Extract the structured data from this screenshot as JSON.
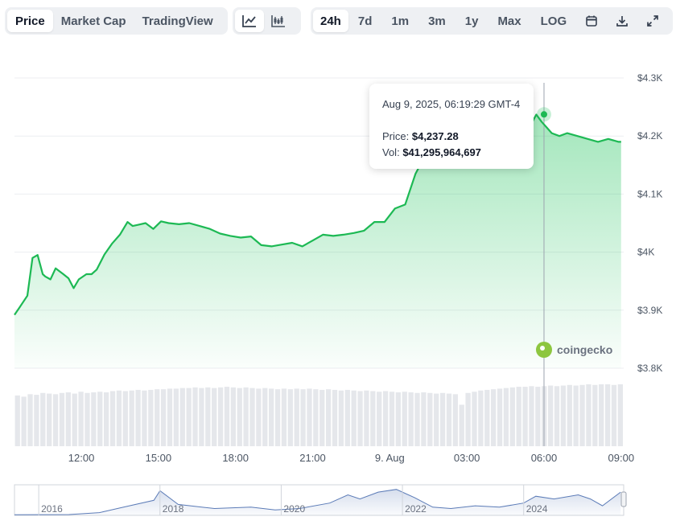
{
  "toolbar": {
    "view_tabs": [
      "Price",
      "Market Cap",
      "TradingView"
    ],
    "active_view": "Price",
    "chart_style_icons": [
      "line-chart-icon",
      "candlestick-chart-icon"
    ],
    "ranges": [
      "24h",
      "7d",
      "1m",
      "3m",
      "1y",
      "Max",
      "LOG"
    ],
    "active_range": "24h",
    "action_icons": [
      "calendar-icon",
      "download-icon",
      "expand-icon"
    ]
  },
  "tooltip": {
    "datetime": "Aug 9, 2025, 06:19:29 GMT-4",
    "price_label": "Price:",
    "price_value": "$4,237.28",
    "vol_label": "Vol:",
    "vol_value": "$41,295,964,697"
  },
  "watermark": "coingecko",
  "colors": {
    "line": "#1db954",
    "fill": "#23c45e",
    "accent_bg": "#eef0f3",
    "navigator_line": "#5b7bb7"
  },
  "chart_data": {
    "type": "area",
    "y_ticks": [
      "$4.3K",
      "$4.2K",
      "$4.1K",
      "$4K",
      "$3.9K",
      "$3.8K"
    ],
    "ylim": [
      3800,
      4300
    ],
    "x_ticks": [
      {
        "hour": 12,
        "label": "12:00"
      },
      {
        "hour": 15,
        "label": "15:00"
      },
      {
        "hour": 18,
        "label": "18:00"
      },
      {
        "hour": 21,
        "label": "21:00"
      },
      {
        "hour": 24,
        "label": "9. Aug"
      },
      {
        "hour": 27,
        "label": "03:00"
      },
      {
        "hour": 30,
        "label": "06:00"
      },
      {
        "hour": 33,
        "label": "09:00"
      }
    ],
    "xlim": [
      9.4,
      33.1
    ],
    "grid": true,
    "price_series": {
      "name": "Price",
      "x": [
        9.4,
        9.6,
        9.9,
        10.1,
        10.3,
        10.5,
        10.6,
        10.8,
        11.0,
        11.3,
        11.5,
        11.7,
        11.9,
        12.2,
        12.4,
        12.6,
        12.9,
        13.2,
        13.5,
        13.8,
        14.0,
        14.2,
        14.5,
        14.8,
        15.1,
        15.4,
        15.8,
        16.2,
        16.6,
        17.0,
        17.4,
        17.8,
        18.2,
        18.6,
        19.0,
        19.4,
        19.8,
        20.2,
        20.6,
        21.0,
        21.4,
        21.8,
        22.2,
        22.6,
        23.0,
        23.4,
        23.8,
        24.2,
        24.6,
        25.0,
        25.3,
        25.5,
        25.7,
        25.8,
        26.0,
        26.2,
        26.6,
        27.0,
        27.4,
        27.8,
        28.2,
        28.6,
        29.0,
        29.4,
        29.7,
        29.9,
        30.1,
        30.3,
        30.6,
        30.9,
        31.3,
        31.7,
        32.1,
        32.5,
        32.9,
        33.0
      ],
      "values": [
        3892,
        3905,
        3925,
        3990,
        3995,
        3962,
        3958,
        3953,
        3972,
        3962,
        3955,
        3938,
        3953,
        3962,
        3962,
        3970,
        3996,
        4015,
        4030,
        4052,
        4045,
        4047,
        4050,
        4040,
        4053,
        4050,
        4048,
        4050,
        4045,
        4040,
        4032,
        4028,
        4025,
        4027,
        4012,
        4010,
        4013,
        4016,
        4010,
        4020,
        4030,
        4028,
        4030,
        4033,
        4037,
        4052,
        4052,
        4075,
        4082,
        4135,
        4160,
        4175,
        4205,
        4195,
        4210,
        4200,
        4205,
        4195,
        4198,
        4200,
        4195,
        4205,
        4195,
        4212,
        4237,
        4225,
        4215,
        4205,
        4200,
        4205,
        4200,
        4195,
        4190,
        4195,
        4190,
        4190
      ]
    },
    "tooltip_point": {
      "x": 30.0,
      "value": 4237.28
    },
    "volume_bars": {
      "name": "Vol",
      "count": 96,
      "relative_heights": [
        0.82,
        0.8,
        0.84,
        0.83,
        0.86,
        0.85,
        0.84,
        0.86,
        0.87,
        0.85,
        0.88,
        0.86,
        0.87,
        0.88,
        0.87,
        0.89,
        0.9,
        0.89,
        0.9,
        0.91,
        0.9,
        0.91,
        0.92,
        0.92,
        0.93,
        0.93,
        0.94,
        0.94,
        0.95,
        0.94,
        0.95,
        0.94,
        0.95,
        0.96,
        0.95,
        0.94,
        0.95,
        0.94,
        0.93,
        0.94,
        0.93,
        0.92,
        0.93,
        0.92,
        0.93,
        0.92,
        0.93,
        0.92,
        0.91,
        0.92,
        0.91,
        0.9,
        0.91,
        0.9,
        0.89,
        0.9,
        0.89,
        0.88,
        0.89,
        0.88,
        0.87,
        0.88,
        0.87,
        0.86,
        0.87,
        0.86,
        0.85,
        0.86,
        0.85,
        0.84,
        0.67,
        0.86,
        0.88,
        0.9,
        0.91,
        0.92,
        0.93,
        0.94,
        0.95,
        0.96,
        0.96,
        0.97,
        0.96,
        0.97,
        0.98,
        0.97,
        0.98,
        0.99,
        0.98,
        0.99,
        1.0,
        0.99,
        1.0,
        1.0,
        0.99,
        1.0
      ]
    },
    "navigator": {
      "year_ticks": [
        {
          "year": 2016,
          "label": "2016"
        },
        {
          "year": 2018,
          "label": "2018"
        },
        {
          "year": 2020,
          "label": "2020"
        },
        {
          "year": 2022,
          "label": "2022"
        },
        {
          "year": 2024,
          "label": "2024"
        }
      ],
      "xlim": [
        2015.6,
        2025.65
      ],
      "x": [
        2015.6,
        2016.5,
        2017.0,
        2017.4,
        2017.9,
        2018.0,
        2018.3,
        2018.9,
        2019.5,
        2019.9,
        2020.3,
        2020.8,
        2021.1,
        2021.3,
        2021.6,
        2021.9,
        2022.2,
        2022.5,
        2022.8,
        2023.2,
        2023.6,
        2024.0,
        2024.2,
        2024.5,
        2024.9,
        2025.1,
        2025.3,
        2025.6
      ],
      "values": [
        0.02,
        0.03,
        0.1,
        0.3,
        0.55,
        0.9,
        0.4,
        0.25,
        0.3,
        0.2,
        0.25,
        0.45,
        0.75,
        0.6,
        0.85,
        0.95,
        0.65,
        0.3,
        0.25,
        0.35,
        0.3,
        0.45,
        0.7,
        0.6,
        0.75,
        0.6,
        0.35,
        0.85
      ]
    }
  }
}
